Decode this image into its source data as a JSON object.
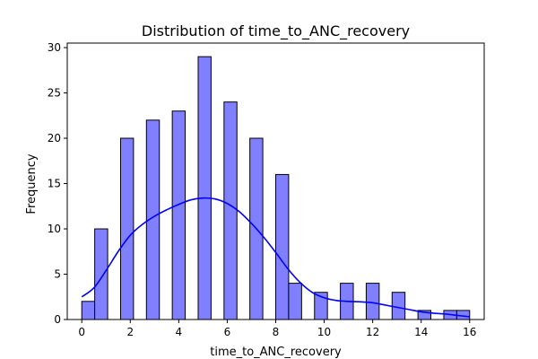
{
  "chart_data": {
    "type": "bar",
    "title": "Distribution of time_to_ANC_recovery",
    "xlabel": "time_to_ANC_recovery",
    "ylabel": "Frequency",
    "xlim": [
      -0.6,
      16.6
    ],
    "ylim": [
      0,
      30.5
    ],
    "xticks": [
      0,
      2,
      4,
      6,
      8,
      10,
      12,
      14,
      16
    ],
    "yticks": [
      0,
      5,
      10,
      15,
      20,
      25,
      30
    ],
    "bins": [
      {
        "x0": 0.0,
        "x1": 0.533,
        "count": 2
      },
      {
        "x0": 0.533,
        "x1": 1.067,
        "count": 10
      },
      {
        "x0": 1.067,
        "x1": 1.6,
        "count": 0
      },
      {
        "x0": 1.6,
        "x1": 2.133,
        "count": 20
      },
      {
        "x0": 2.133,
        "x1": 2.667,
        "count": 0
      },
      {
        "x0": 2.667,
        "x1": 3.2,
        "count": 22
      },
      {
        "x0": 3.2,
        "x1": 3.733,
        "count": 0
      },
      {
        "x0": 3.733,
        "x1": 4.267,
        "count": 23
      },
      {
        "x0": 4.267,
        "x1": 4.8,
        "count": 0
      },
      {
        "x0": 4.8,
        "x1": 5.333,
        "count": 29
      },
      {
        "x0": 5.333,
        "x1": 5.867,
        "count": 0
      },
      {
        "x0": 5.867,
        "x1": 6.4,
        "count": 24
      },
      {
        "x0": 6.4,
        "x1": 6.933,
        "count": 0
      },
      {
        "x0": 6.933,
        "x1": 7.467,
        "count": 20
      },
      {
        "x0": 7.467,
        "x1": 8.0,
        "count": 0
      },
      {
        "x0": 8.0,
        "x1": 8.533,
        "count": 16
      },
      {
        "x0": 8.533,
        "x1": 9.067,
        "count": 4
      },
      {
        "x0": 9.067,
        "x1": 9.6,
        "count": 0
      },
      {
        "x0": 9.6,
        "x1": 10.133,
        "count": 3
      },
      {
        "x0": 10.133,
        "x1": 10.667,
        "count": 0
      },
      {
        "x0": 10.667,
        "x1": 11.2,
        "count": 4
      },
      {
        "x0": 11.2,
        "x1": 11.733,
        "count": 0
      },
      {
        "x0": 11.733,
        "x1": 12.267,
        "count": 4
      },
      {
        "x0": 12.267,
        "x1": 12.8,
        "count": 0
      },
      {
        "x0": 12.8,
        "x1": 13.333,
        "count": 3
      },
      {
        "x0": 13.333,
        "x1": 13.867,
        "count": 0
      },
      {
        "x0": 13.867,
        "x1": 14.4,
        "count": 1
      },
      {
        "x0": 14.4,
        "x1": 14.933,
        "count": 0
      },
      {
        "x0": 14.933,
        "x1": 15.467,
        "count": 1
      },
      {
        "x0": 15.467,
        "x1": 16.0,
        "count": 1
      }
    ],
    "kde": {
      "x": [
        0,
        0.5,
        1,
        1.5,
        2,
        2.5,
        3,
        3.5,
        4,
        4.5,
        5,
        5.5,
        6,
        6.5,
        7,
        7.5,
        8,
        8.5,
        9,
        9.5,
        10,
        10.5,
        11,
        11.5,
        12,
        12.5,
        13,
        13.5,
        14,
        14.5,
        15,
        15.5,
        16
      ],
      "y": [
        2.5,
        3.5,
        5.4,
        7.5,
        9.3,
        10.5,
        11.4,
        12.1,
        12.7,
        13.2,
        13.4,
        13.3,
        12.8,
        11.9,
        10.6,
        9.1,
        7.4,
        5.6,
        4.1,
        3.0,
        2.4,
        2.1,
        2.0,
        1.95,
        1.85,
        1.6,
        1.35,
        1.1,
        0.85,
        0.7,
        0.6,
        0.45,
        0.3
      ]
    },
    "bar_color": "#8080ff",
    "bar_edge_color": "#000000",
    "kde_color": "#0000ff",
    "grid": false,
    "legend": "none"
  }
}
